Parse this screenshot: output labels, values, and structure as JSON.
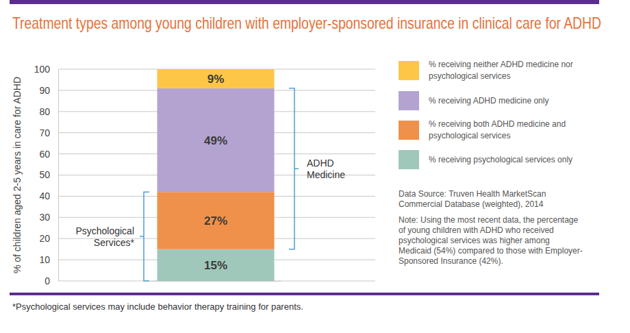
{
  "chart_data": {
    "type": "bar",
    "stacked": true,
    "data_labels": true,
    "grid": true,
    "title": "Treatment types among young children with employer-sponsored insurance in clinical care for ADHD",
    "y_label": "% of children aged 2-5 years in care for ADHD",
    "categories": [
      null
    ],
    "series": [
      {
        "name": "% receiving psychological services only",
        "color": "#9fc8bb",
        "values": [
          15
        ],
        "value_labels": [
          "15%"
        ]
      },
      {
        "name": "% receiving both ADHD medicine and psychological services",
        "color": "#ef914a",
        "values": [
          27
        ],
        "value_labels": [
          "27%"
        ]
      },
      {
        "name": "% receiving ADHD medicine only",
        "color": "#b3a3d1",
        "values": [
          49
        ],
        "value_labels": [
          "49%"
        ]
      },
      {
        "name": "% receiving neither ADHD medicine nor psychological services",
        "color": "#fdc647",
        "values": [
          9
        ],
        "value_labels": [
          "9%"
        ]
      }
    ],
    "ylim": [
      0,
      100
    ],
    "yticks": [
      0,
      10,
      20,
      30,
      40,
      50,
      60,
      70,
      80,
      90,
      100
    ],
    "brackets": [
      {
        "text": [
          "ADHD",
          "Medicine"
        ],
        "series": [
          "% receiving both ADHD medicine and psychological services",
          "% receiving ADHD medicine only"
        ]
      },
      {
        "text": [
          "Psychological",
          "Services*"
        ],
        "series": [
          "% receiving psychological services only",
          "% receiving both ADHD medicine and psychological services"
        ]
      }
    ],
    "source": [
      "Data Source: Truven Health MarketScan",
      "Commercial Database (weighted), 2014"
    ],
    "note": [
      "Note: Using the most recent data, the percentage",
      "of young children with ADHD who received",
      "psychological services was higher among",
      "Medicaid (54%) compared to those with Employer-",
      "Sponsored Insurance (42%)."
    ],
    "footnote": "*Psychological services may include behavior therapy training for parents."
  }
}
